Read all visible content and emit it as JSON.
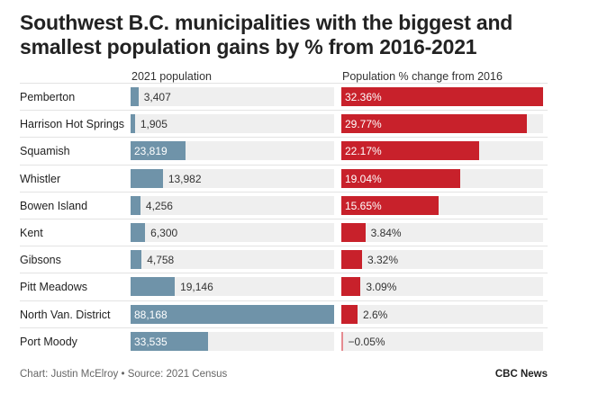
{
  "title": "Southwest B.C. municipalities with the biggest and smallest population gains by % from 2016-2021",
  "chart_data": {
    "type": "bar",
    "categories": [
      "Pemberton",
      "Harrison Hot Springs",
      "Squamish",
      "Whistler",
      "Bowen Island",
      "Kent",
      "Gibsons",
      "Pitt Meadows",
      "North Van. District",
      "Port Moody"
    ],
    "series": [
      {
        "name": "2021 population",
        "values": [
          3407,
          1905,
          23819,
          13982,
          4256,
          6300,
          4758,
          19146,
          88168,
          33535
        ],
        "labels": [
          "3,407",
          "1,905",
          "23,819",
          "13,982",
          "4,256",
          "6,300",
          "4,758",
          "19,146",
          "88,168",
          "33,535"
        ],
        "max": 88168
      },
      {
        "name": "Population % change from 2016",
        "values": [
          32.36,
          29.77,
          22.17,
          19.04,
          15.65,
          3.84,
          3.32,
          3.09,
          2.6,
          -0.05
        ],
        "labels": [
          "32.36%",
          "29.77%",
          "22.17%",
          "19.04%",
          "15.65%",
          "3.84%",
          "3.32%",
          "3.09%",
          "2.6%",
          "−0.05%"
        ],
        "max": 32.36
      }
    ]
  },
  "footer": {
    "credit": "Chart: Justin McElroy • Source: 2021 Census",
    "brand": "CBC News"
  },
  "colors": {
    "population_bar": "#6f93a9",
    "change_bar": "#c8212b",
    "track": "#efefef"
  }
}
